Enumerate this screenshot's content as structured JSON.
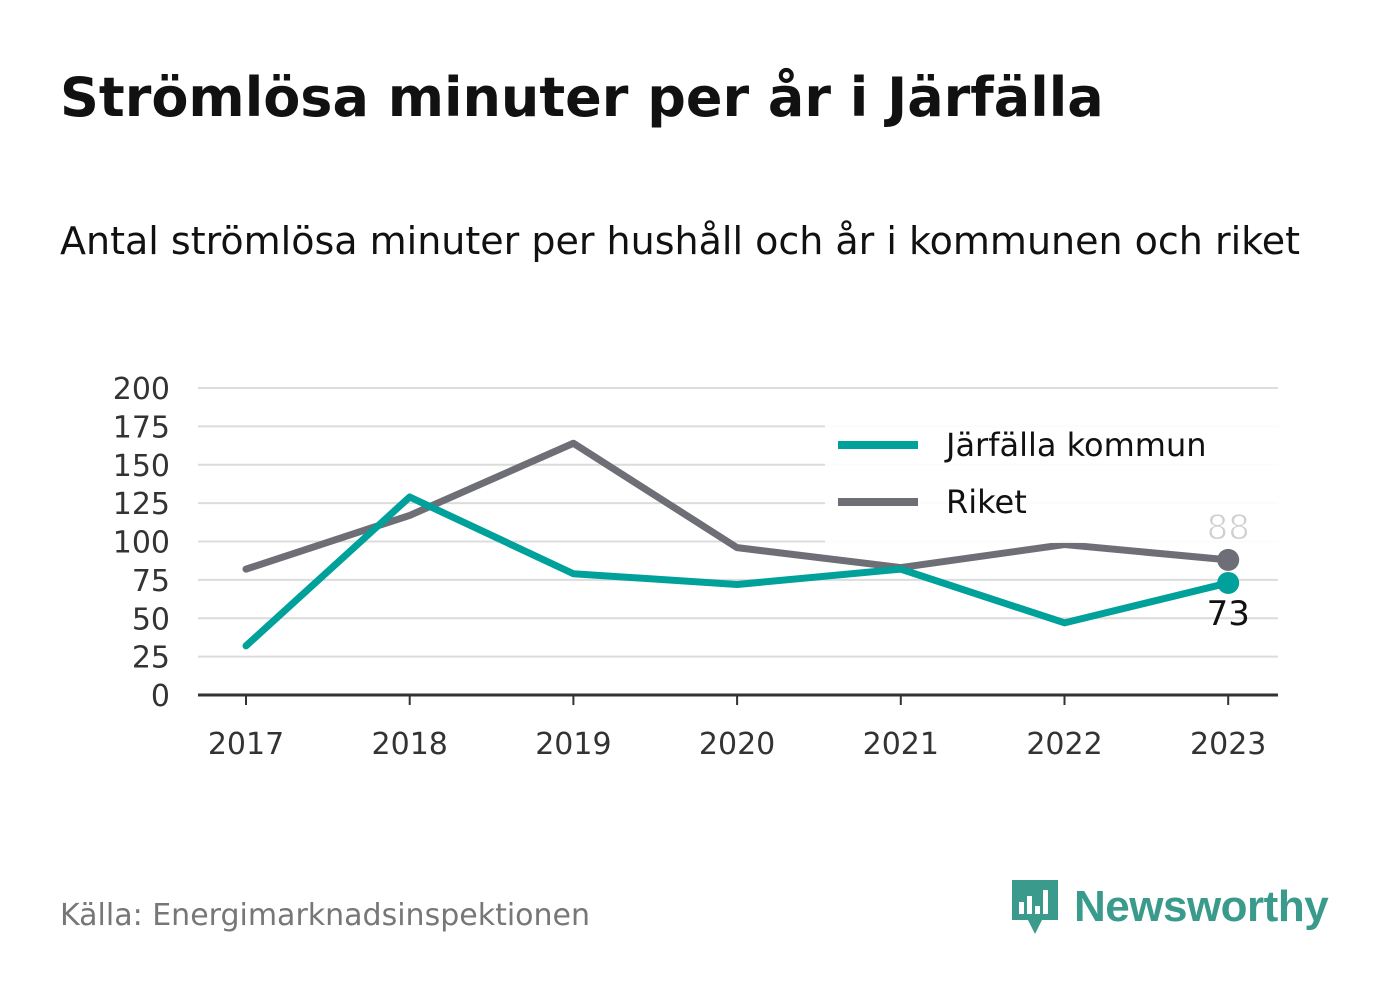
{
  "title": "Strömlösa minuter per år i Järfälla",
  "subtitle": "Antal strömlösa minuter per hushåll och år i kommunen och riket",
  "source": "Källa: Energimarknadsinspektionen",
  "brand": {
    "name": "Newsworthy",
    "icon": "newsworthy-bar-chart-icon",
    "color": "#3a9a8c"
  },
  "chart_data": {
    "type": "line",
    "x": [
      "2017",
      "2018",
      "2019",
      "2020",
      "2021",
      "2022",
      "2023"
    ],
    "ylim": [
      0,
      200
    ],
    "yticks": [
      0,
      25,
      50,
      75,
      100,
      125,
      150,
      175,
      200
    ],
    "grid": true,
    "legend_position": "top-right",
    "series": [
      {
        "name": "Järfälla kommun",
        "color": "#00a19a",
        "values": [
          32,
          129,
          79,
          72,
          82,
          47,
          73
        ],
        "end_label": "73"
      },
      {
        "name": "Riket",
        "color": "#6e6e76",
        "values": [
          82,
          117,
          164,
          96,
          83,
          98,
          88
        ],
        "end_label": "88"
      }
    ]
  }
}
